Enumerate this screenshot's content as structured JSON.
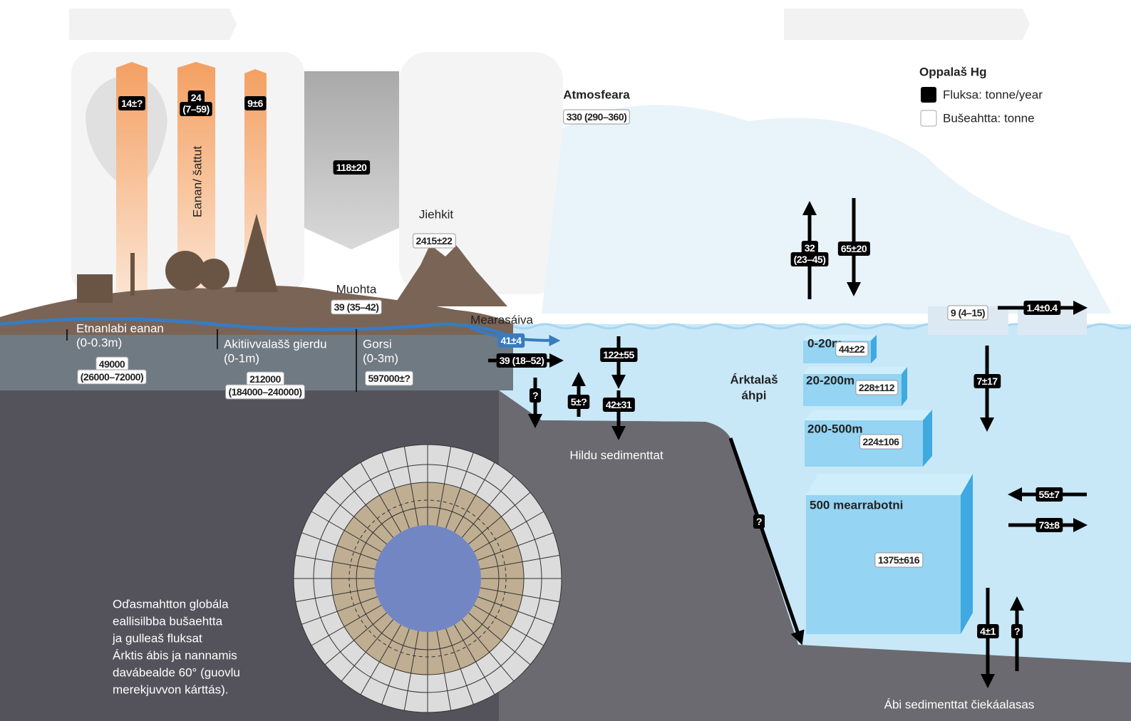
{
  "legend": {
    "title": "Oppalaš Hg",
    "flux": "Fluksa: tonne/year",
    "stock": "Bušeahtta: tonne"
  },
  "atmosphere": {
    "label": "Atmosfeara",
    "stock": "330 (290–360)"
  },
  "emissions": {
    "label": "Eanan/ šattut",
    "fluxes": [
      [
        "14±?"
      ],
      [
        "24",
        "(7–59)"
      ],
      [
        "9±6"
      ]
    ],
    "deposition": "118±20"
  },
  "glaciers": {
    "label": "Jiehkit",
    "stock": "2415±22"
  },
  "snow": {
    "label": "Muohta",
    "stock": "39 (35–42)"
  },
  "rivers": {
    "label": "Mearasáiva",
    "fluxes": [
      "41±4",
      "39 (18–52)",
      "?"
    ]
  },
  "coast": {
    "fluxes": [
      "5±?",
      "122±55",
      "42±31"
    ],
    "label": "Hildu sedimenttat"
  },
  "soils": [
    {
      "label": "Etnanlabi eanan",
      "depth": "(0-0.3m)",
      "stock": [
        "49000",
        "(26000–72000)"
      ]
    },
    {
      "label": "Akitiivvalašš gierdu",
      "depth": "(0-1m)",
      "stock": [
        "212000",
        "(184000–240000)"
      ]
    },
    {
      "label": "Gorsi",
      "depth": "(0-3m)",
      "stock": [
        "597000±?"
      ]
    }
  ],
  "ocean": {
    "label": [
      "Árktalaš",
      "áhpi"
    ],
    "air_sea": {
      "up": [
        "32",
        "(23–45)"
      ],
      "down": "65±20"
    },
    "sea_ice": {
      "stock": "9 (4–15)",
      "export": "1.4±0.4",
      "down": "7±17"
    },
    "layers": [
      {
        "depth": "0-20m",
        "stock": "44±22"
      },
      {
        "depth": "20-200m",
        "stock": "228±112"
      },
      {
        "depth": "200-500m",
        "stock": "224±106"
      },
      {
        "depth": "500 mearrabotni",
        "stock": "1375±616"
      }
    ],
    "exchange": {
      "in": "55±7",
      "out": "73±8"
    },
    "slope": "?",
    "burial": "4±1",
    "release": "?",
    "sediments": "Ábi sedimenttat čiekáalasas"
  },
  "caption": [
    "Oďasmahtton globála",
    "eallisilbba bušaehtta",
    "ja  gulleaš fluksat",
    "Árktis ábis ja nannamis",
    "davábealde 60° (guovlu",
    "merekjuvvon kárttás)."
  ]
}
